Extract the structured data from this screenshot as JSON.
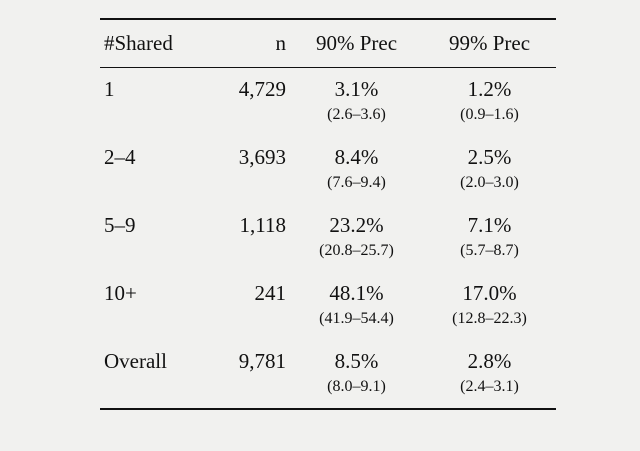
{
  "page": {
    "background_color": "#f1f1ef",
    "rule_color": "#111111"
  },
  "table": {
    "headers": {
      "shared": "#Shared",
      "n": "n",
      "prec90": "90% Prec",
      "prec99": "99% Prec"
    },
    "rows": [
      {
        "shared": "1",
        "n": "4,729",
        "prec90": "3.1%",
        "prec90_ci": "(2.6–3.6)",
        "prec99": "1.2%",
        "prec99_ci": "(0.9–1.6)"
      },
      {
        "shared": "2–4",
        "n": "3,693",
        "prec90": "8.4%",
        "prec90_ci": "(7.6–9.4)",
        "prec99": "2.5%",
        "prec99_ci": "(2.0–3.0)"
      },
      {
        "shared": "5–9",
        "n": "1,118",
        "prec90": "23.2%",
        "prec90_ci": "(20.8–25.7)",
        "prec99": "7.1%",
        "prec99_ci": "(5.7–8.7)"
      },
      {
        "shared": "10+",
        "n": "241",
        "prec90": "48.1%",
        "prec90_ci": "(41.9–54.4)",
        "prec99": "17.0%",
        "prec99_ci": "(12.8–22.3)"
      },
      {
        "shared": "Overall",
        "n": "9,781",
        "prec90": "8.5%",
        "prec90_ci": "(8.0–9.1)",
        "prec99": "2.8%",
        "prec99_ci": "(2.4–3.1)"
      }
    ]
  },
  "chart_data": {
    "type": "table",
    "columns": [
      "#Shared",
      "n",
      "90% Prec",
      "99% Prec"
    ],
    "rows": [
      {
        "shared": "1",
        "n": 4729,
        "prec90_pct": 3.1,
        "prec90_ci": [
          2.6,
          3.6
        ],
        "prec99_pct": 1.2,
        "prec99_ci": [
          0.9,
          1.6
        ]
      },
      {
        "shared": "2–4",
        "n": 3693,
        "prec90_pct": 8.4,
        "prec90_ci": [
          7.6,
          9.4
        ],
        "prec99_pct": 2.5,
        "prec99_ci": [
          2.0,
          3.0
        ]
      },
      {
        "shared": "5–9",
        "n": 1118,
        "prec90_pct": 23.2,
        "prec90_ci": [
          20.8,
          25.7
        ],
        "prec99_pct": 7.1,
        "prec99_ci": [
          5.7,
          8.7
        ]
      },
      {
        "shared": "10+",
        "n": 241,
        "prec90_pct": 48.1,
        "prec90_ci": [
          41.9,
          54.4
        ],
        "prec99_pct": 17.0,
        "prec99_ci": [
          12.8,
          22.3
        ]
      },
      {
        "shared": "Overall",
        "n": 9781,
        "prec90_pct": 8.5,
        "prec90_ci": [
          8.0,
          9.1
        ],
        "prec99_pct": 2.8,
        "prec99_ci": [
          2.4,
          3.1
        ]
      }
    ]
  }
}
